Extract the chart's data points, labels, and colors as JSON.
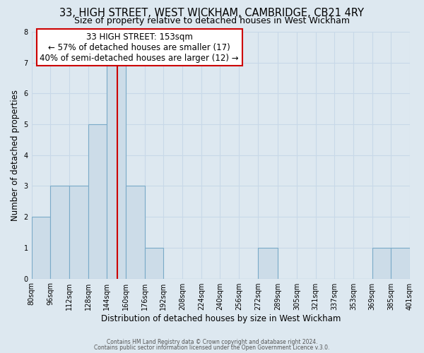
{
  "title": "33, HIGH STREET, WEST WICKHAM, CAMBRIDGE, CB21 4RY",
  "subtitle": "Size of property relative to detached houses in West Wickham",
  "xlabel": "Distribution of detached houses by size in West Wickham",
  "ylabel": "Number of detached properties",
  "bin_edges": [
    80,
    96,
    112,
    128,
    144,
    160,
    176,
    192,
    208,
    224,
    240,
    256,
    272,
    289,
    305,
    321,
    337,
    353,
    369,
    385,
    401
  ],
  "bar_heights": [
    2,
    3,
    3,
    5,
    7,
    3,
    1,
    0,
    0,
    0,
    0,
    0,
    1,
    0,
    0,
    0,
    0,
    0,
    1,
    1
  ],
  "bar_color": "#ccdce8",
  "bar_edge_color": "#7aaac8",
  "reference_line_x": 153,
  "reference_line_color": "#cc0000",
  "annotation_line1": "33 HIGH STREET: 153sqm",
  "annotation_line2": "← 57% of detached houses are smaller (17)",
  "annotation_line3": "40% of semi-detached houses are larger (12) →",
  "annotation_box_facecolor": "#ffffff",
  "annotation_box_edgecolor": "#cc0000",
  "ylim": [
    0,
    8
  ],
  "yticks": [
    0,
    1,
    2,
    3,
    4,
    5,
    6,
    7,
    8
  ],
  "grid_color": "#c8d8e8",
  "background_color": "#dde8f0",
  "footer_line1": "Contains HM Land Registry data © Crown copyright and database right 2024.",
  "footer_line2": "Contains public sector information licensed under the Open Government Licence v.3.0.",
  "title_fontsize": 10.5,
  "subtitle_fontsize": 9,
  "annotation_fontsize": 8.5,
  "tick_label_fontsize": 7,
  "ylabel_fontsize": 8.5,
  "xlabel_fontsize": 8.5,
  "footer_fontsize": 5.5
}
